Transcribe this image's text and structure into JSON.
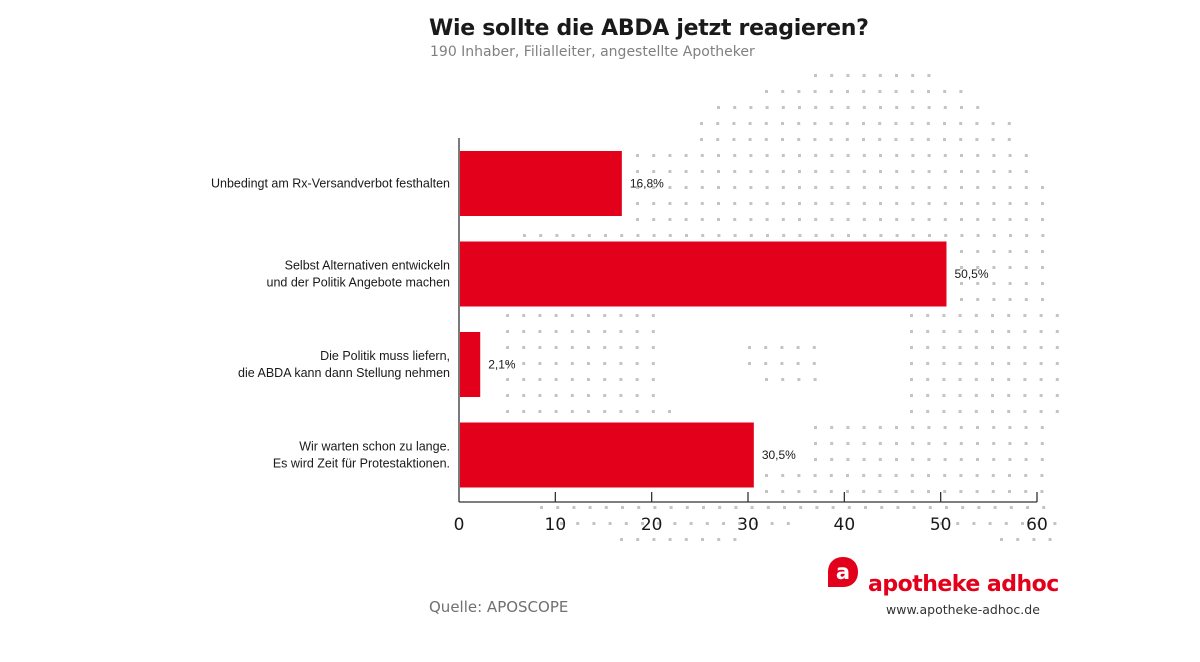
{
  "header": {
    "title": "Wie sollte die ABDA jetzt reagieren?",
    "subtitle": "190 Inhaber, Filialleiter, angestellte Apotheker"
  },
  "chart_data": {
    "type": "bar",
    "orientation": "horizontal",
    "title": "Wie sollte die ABDA jetzt reagieren?",
    "subtitle": "190 Inhaber, Filialleiter, angestellte Apotheker",
    "xlabel": "",
    "ylabel": "",
    "xlim": [
      0,
      60
    ],
    "x_ticks": [
      0,
      10,
      20,
      30,
      40,
      50,
      60
    ],
    "grid": false,
    "categories": [
      [
        "Unbedingt am Rx-Versandverbot festhalten"
      ],
      [
        "Selbst Alternativen entwickeln",
        "und der Politik Angebote machen"
      ],
      [
        "Die Politik muss liefern,",
        "die ABDA kann dann Stellung nehmen"
      ],
      [
        "Wir warten schon zu lange.",
        "Es wird Zeit für Protestaktionen."
      ]
    ],
    "values": [
      16.8,
      50.5,
      2.1,
      30.5
    ],
    "value_labels": [
      "16,8%",
      "50,5%",
      "2,1%",
      "30,5%"
    ],
    "bar_color": "#e2001a",
    "unit": "%"
  },
  "footer": {
    "source": "Quelle: APOSCOPE",
    "brand_name": "apotheke adhoc",
    "brand_url": "www.apotheke-adhoc.de",
    "brand_logo_letter": "a",
    "brand_color": "#e2001a"
  }
}
